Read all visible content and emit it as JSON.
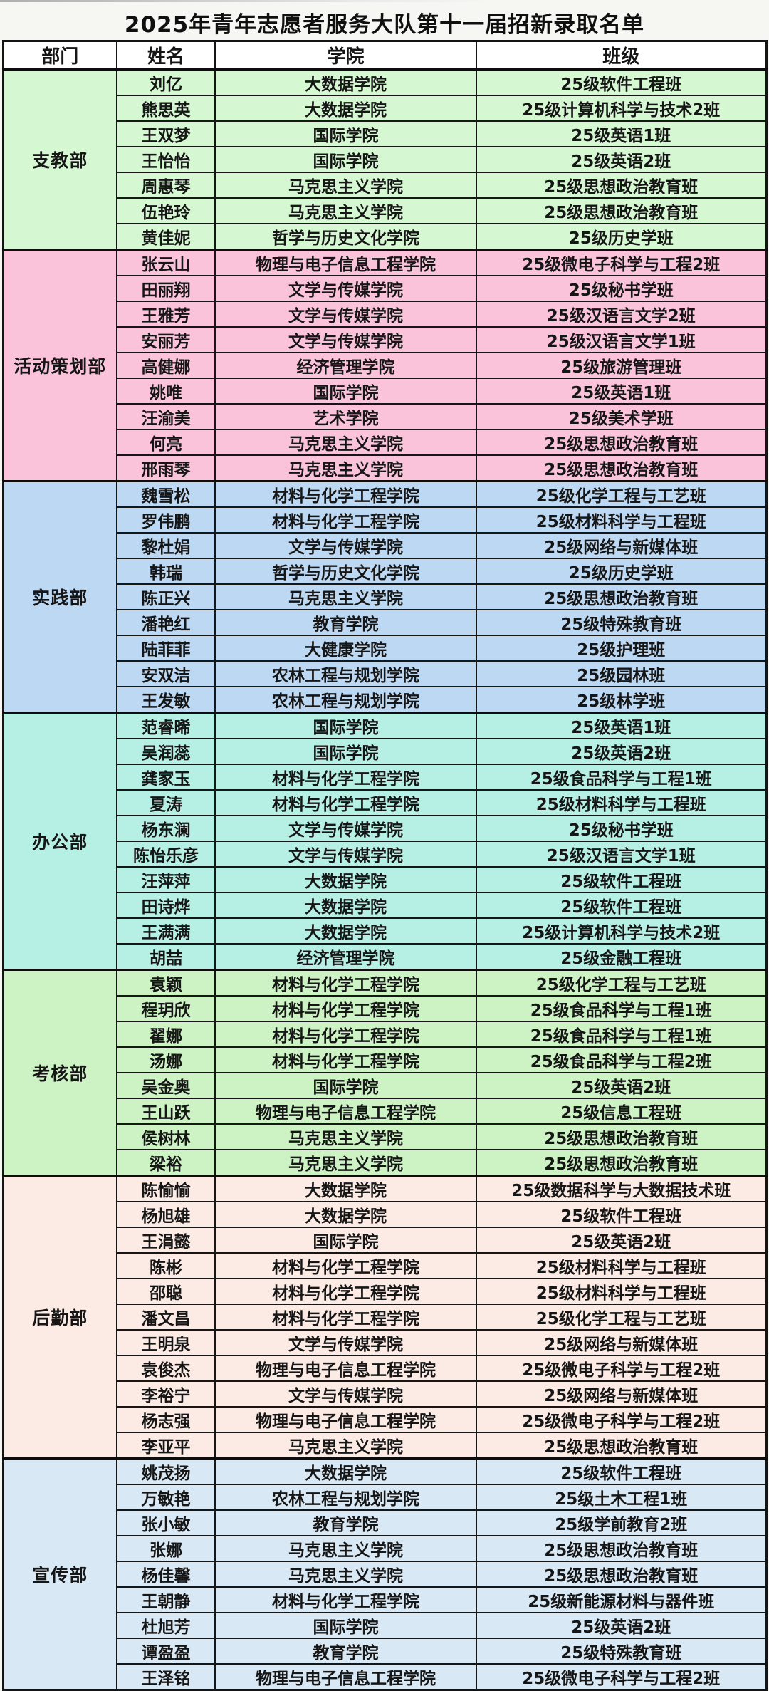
{
  "title": "2025年青年志愿者服务大队第十一届招新录取名单",
  "columns": [
    "部门",
    "姓名",
    "学院",
    "班级"
  ],
  "border_color": "#141414",
  "header_bg": "#ffffff",
  "departments": [
    {
      "name": "支教部",
      "color": "#d5f8d2",
      "members": [
        {
          "name": "刘亿",
          "college": "大数据学院",
          "class": "25级软件工程班"
        },
        {
          "name": "熊思英",
          "college": "大数据学院",
          "class": "25级计算机科学与技术2班"
        },
        {
          "name": "王双梦",
          "college": "国际学院",
          "class": "25级英语1班"
        },
        {
          "name": "王怡怡",
          "college": "国际学院",
          "class": "25级英语2班"
        },
        {
          "name": "周惠琴",
          "college": "马克思主义学院",
          "class": "25级思想政治教育班"
        },
        {
          "name": "伍艳玲",
          "college": "马克思主义学院",
          "class": "25级思想政治教育班"
        },
        {
          "name": "黄佳妮",
          "college": "哲学与历史文化学院",
          "class": "25级历史学班"
        }
      ]
    },
    {
      "name": "活动策划部",
      "color": "#fbc3da",
      "members": [
        {
          "name": "张云山",
          "college": "物理与电子信息工程学院",
          "class": "25级微电子科学与工程2班"
        },
        {
          "name": "田丽翔",
          "college": "文学与传媒学院",
          "class": "25级秘书学班"
        },
        {
          "name": "王雅芳",
          "college": "文学与传媒学院",
          "class": "25级汉语言文学2班"
        },
        {
          "name": "安丽芳",
          "college": "文学与传媒学院",
          "class": "25级汉语言文学1班"
        },
        {
          "name": "高健娜",
          "college": "经济管理学院",
          "class": "25级旅游管理班"
        },
        {
          "name": "姚唯",
          "college": "国际学院",
          "class": "25级英语1班"
        },
        {
          "name": "汪渝美",
          "college": "艺术学院",
          "class": "25级美术学班"
        },
        {
          "name": "何亮",
          "college": "马克思主义学院",
          "class": "25级思想政治教育班"
        },
        {
          "name": "邢雨琴",
          "college": "马克思主义学院",
          "class": "25级思想政治教育班"
        }
      ]
    },
    {
      "name": "实践部",
      "color": "#bdd8f3",
      "members": [
        {
          "name": "魏雪松",
          "college": "材料与化学工程学院",
          "class": "25级化学工程与工艺班"
        },
        {
          "name": "罗伟鹏",
          "college": "材料与化学工程学院",
          "class": "25级材料科学与工程班"
        },
        {
          "name": "黎杜娟",
          "college": "文学与传媒学院",
          "class": "25级网络与新媒体班"
        },
        {
          "name": "韩瑞",
          "college": "哲学与历史文化学院",
          "class": "25级历史学班"
        },
        {
          "name": "陈正兴",
          "college": "马克思主义学院",
          "class": "25级思想政治教育班"
        },
        {
          "name": "潘艳红",
          "college": "教育学院",
          "class": "25级特殊教育班"
        },
        {
          "name": "陆菲菲",
          "college": "大健康学院",
          "class": "25级护理班"
        },
        {
          "name": "安双洁",
          "college": "农林工程与规划学院",
          "class": "25级园林班"
        },
        {
          "name": "王发敏",
          "college": "农林工程与规划学院",
          "class": "25级林学班"
        }
      ]
    },
    {
      "name": "办公部",
      "color": "#b6f0e5",
      "members": [
        {
          "name": "范睿晞",
          "college": "国际学院",
          "class": "25级英语1班"
        },
        {
          "name": "吴润蕊",
          "college": "国际学院",
          "class": "25级英语2班"
        },
        {
          "name": "龚家玉",
          "college": "材料与化学工程学院",
          "class": "25级食品科学与工程1班"
        },
        {
          "name": "夏涛",
          "college": "材料与化学工程学院",
          "class": "25级材料科学与工程班"
        },
        {
          "name": "杨东澜",
          "college": "文学与传媒学院",
          "class": "25级秘书学班"
        },
        {
          "name": "陈怡乐彦",
          "college": "文学与传媒学院",
          "class": "25级汉语言文学1班"
        },
        {
          "name": "汪萍萍",
          "college": "大数据学院",
          "class": "25级软件工程班"
        },
        {
          "name": "田诗烨",
          "college": "大数据学院",
          "class": "25级软件工程班"
        },
        {
          "name": "王满满",
          "college": "大数据学院",
          "class": "25级计算机科学与技术2班"
        },
        {
          "name": "胡喆",
          "college": "经济管理学院",
          "class": "25级金融工程班"
        }
      ]
    },
    {
      "name": "考核部",
      "color": "#cdf3c5",
      "members": [
        {
          "name": "袁颖",
          "college": "材料与化学工程学院",
          "class": "25级化学工程与工艺班"
        },
        {
          "name": "程玥欣",
          "college": "材料与化学工程学院",
          "class": "25级食品科学与工程1班"
        },
        {
          "name": "翟娜",
          "college": "材料与化学工程学院",
          "class": "25级食品科学与工程1班"
        },
        {
          "name": "汤娜",
          "college": "材料与化学工程学院",
          "class": "25级食品科学与工程2班"
        },
        {
          "name": "吴金奥",
          "college": "国际学院",
          "class": "25级英语2班"
        },
        {
          "name": "王山跃",
          "college": "物理与电子信息工程学院",
          "class": "25级信息工程班"
        },
        {
          "name": "侯树林",
          "college": "马克思主义学院",
          "class": "25级思想政治教育班"
        },
        {
          "name": "梁裕",
          "college": "马克思主义学院",
          "class": "25级思想政治教育班"
        }
      ]
    },
    {
      "name": "后勤部",
      "color": "#fcebe4",
      "members": [
        {
          "name": "陈愉愉",
          "college": "大数据学院",
          "class": "25级数据科学与大数据技术班"
        },
        {
          "name": "杨旭雄",
          "college": "大数据学院",
          "class": "25级软件工程班"
        },
        {
          "name": "王涓懿",
          "college": "国际学院",
          "class": "25级英语2班"
        },
        {
          "name": "陈彬",
          "college": "材料与化学工程学院",
          "class": "25级材料科学与工程班"
        },
        {
          "name": "邵聪",
          "college": "材料与化学工程学院",
          "class": "25级材料科学与工程班"
        },
        {
          "name": "潘文昌",
          "college": "材料与化学工程学院",
          "class": "25级化学工程与工艺班"
        },
        {
          "name": "王明泉",
          "college": "文学与传媒学院",
          "class": "25级网络与新媒体班"
        },
        {
          "name": "袁俊杰",
          "college": "物理与电子信息工程学院",
          "class": "25级微电子科学与工程2班"
        },
        {
          "name": "李裕宁",
          "college": "文学与传媒学院",
          "class": "25级网络与新媒体班"
        },
        {
          "name": "杨志强",
          "college": "物理与电子信息工程学院",
          "class": "25级微电子科学与工程2班"
        },
        {
          "name": "李亚平",
          "college": "马克思主义学院",
          "class": "25级思想政治教育班"
        }
      ]
    },
    {
      "name": "宣传部",
      "color": "#d9e8f5",
      "members": [
        {
          "name": "姚茂扬",
          "college": "大数据学院",
          "class": "25级软件工程班"
        },
        {
          "name": "万敏艳",
          "college": "农林工程与规划学院",
          "class": "25级土木工程1班"
        },
        {
          "name": "张小敏",
          "college": "教育学院",
          "class": "25级学前教育2班"
        },
        {
          "name": "张娜",
          "college": "马克思主义学院",
          "class": "25级思想政治教育班"
        },
        {
          "name": "杨佳馨",
          "college": "马克思主义学院",
          "class": "25级思想政治教育班"
        },
        {
          "name": "王朝静",
          "college": "材料与化学工程学院",
          "class": "25级新能源材料与器件班"
        },
        {
          "name": "杜旭芳",
          "college": "国际学院",
          "class": "25级英语2班"
        },
        {
          "name": "谭盈盈",
          "college": "教育学院",
          "class": "25级特殊教育班"
        },
        {
          "name": "王泽铭",
          "college": "物理与电子信息工程学院",
          "class": "25级微电子科学与工程2班"
        }
      ]
    }
  ]
}
